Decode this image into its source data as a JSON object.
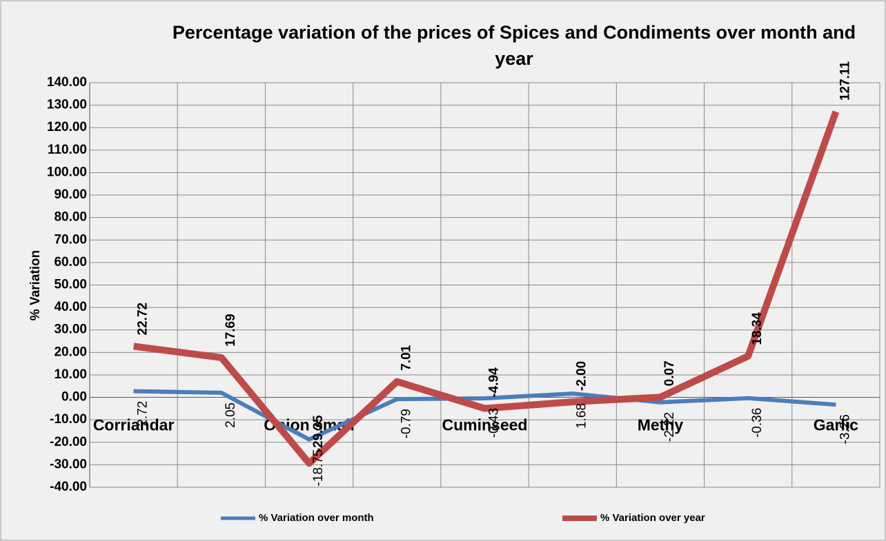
{
  "chart_data": {
    "type": "line",
    "title": "Percentage variation of the prices of Spices and Condiments over month and year",
    "y_label": "% Variation",
    "categories": [
      "Corriandar",
      null,
      "Onion small",
      null,
      "Cuminseed",
      null,
      "Methy",
      null,
      "Garlic"
    ],
    "series": [
      {
        "name": "% Variation over month",
        "color": "#4a7ebb",
        "values": [
          2.72,
          2.05,
          -18.75,
          -0.79,
          -0.43,
          1.68,
          -2.22,
          -0.36,
          -3.26
        ],
        "value_labels": [
          "2.72",
          "2.05",
          "-18.75",
          "-0.79",
          "-0.43",
          "1.68",
          "-2.22",
          "-0.36",
          "-3.26"
        ]
      },
      {
        "name": "% Variation over year",
        "color": "#be4b48",
        "values": [
          22.72,
          17.69,
          -29.35,
          7.01,
          -4.94,
          -2.0,
          0.07,
          18.34,
          127.11
        ],
        "value_labels": [
          "22.72",
          "17.69",
          "-29.35",
          "7.01",
          "-4.94",
          "-2.00",
          "0.07",
          "18.34",
          "127.11"
        ]
      }
    ],
    "ylim": [
      -40,
      140
    ],
    "yticks": [
      {
        "value": -40,
        "label": "-40.00"
      },
      {
        "value": -30,
        "label": "-30.00"
      },
      {
        "value": -20,
        "label": "-20.00"
      },
      {
        "value": -10,
        "label": "-10.00"
      },
      {
        "value": 0,
        "label": "0.00"
      },
      {
        "value": 10,
        "label": "10.00"
      },
      {
        "value": 20,
        "label": "20.00"
      },
      {
        "value": 30,
        "label": "30.00"
      },
      {
        "value": 40,
        "label": "40.00"
      },
      {
        "value": 50,
        "label": "50.00"
      },
      {
        "value": 60,
        "label": "60.00"
      },
      {
        "value": 70,
        "label": "70.00"
      },
      {
        "value": 80,
        "label": "80.00"
      },
      {
        "value": 90,
        "label": "90.00"
      },
      {
        "value": 100,
        "label": "100.00"
      },
      {
        "value": 110,
        "label": "110.00"
      },
      {
        "value": 120,
        "label": "120.00"
      },
      {
        "value": 130,
        "label": "130.00"
      },
      {
        "value": 140,
        "label": "140.00"
      }
    ],
    "grid": true,
    "legend": "bottom"
  }
}
